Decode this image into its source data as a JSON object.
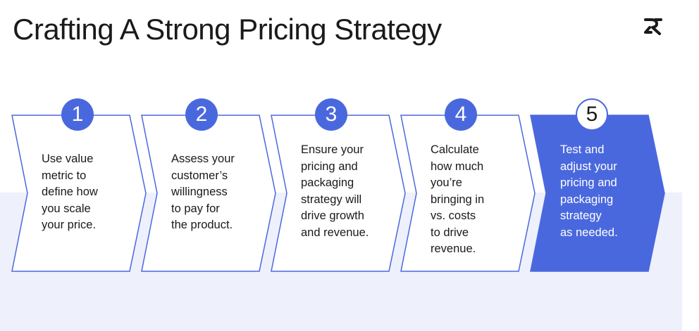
{
  "title": "Crafting A Strong Pricing Strategy",
  "logo_icon": "brand-mark-icon",
  "colors": {
    "accent": "#4a68de",
    "band": "#eef0fc",
    "text": "#1a1a1a"
  },
  "steps": [
    {
      "number": "1",
      "text": "Use value\nmetric to\ndefine how\nyou scale\nyour price.",
      "highlighted": false
    },
    {
      "number": "2",
      "text": "Assess your\ncustomer’s\nwillingness\nto pay for\nthe product.",
      "highlighted": false
    },
    {
      "number": "3",
      "text": "Ensure your\npricing and\npackaging\nstrategy will\ndrive growth\nand revenue.",
      "highlighted": false
    },
    {
      "number": "4",
      "text": "Calculate\nhow much\nyou’re\nbringing in\nvs. costs\nto drive\nrevenue.",
      "highlighted": false
    },
    {
      "number": "5",
      "text": "Test and\nadjust your\npricing and\npackaging\nstrategy\nas needed.",
      "highlighted": true
    }
  ]
}
